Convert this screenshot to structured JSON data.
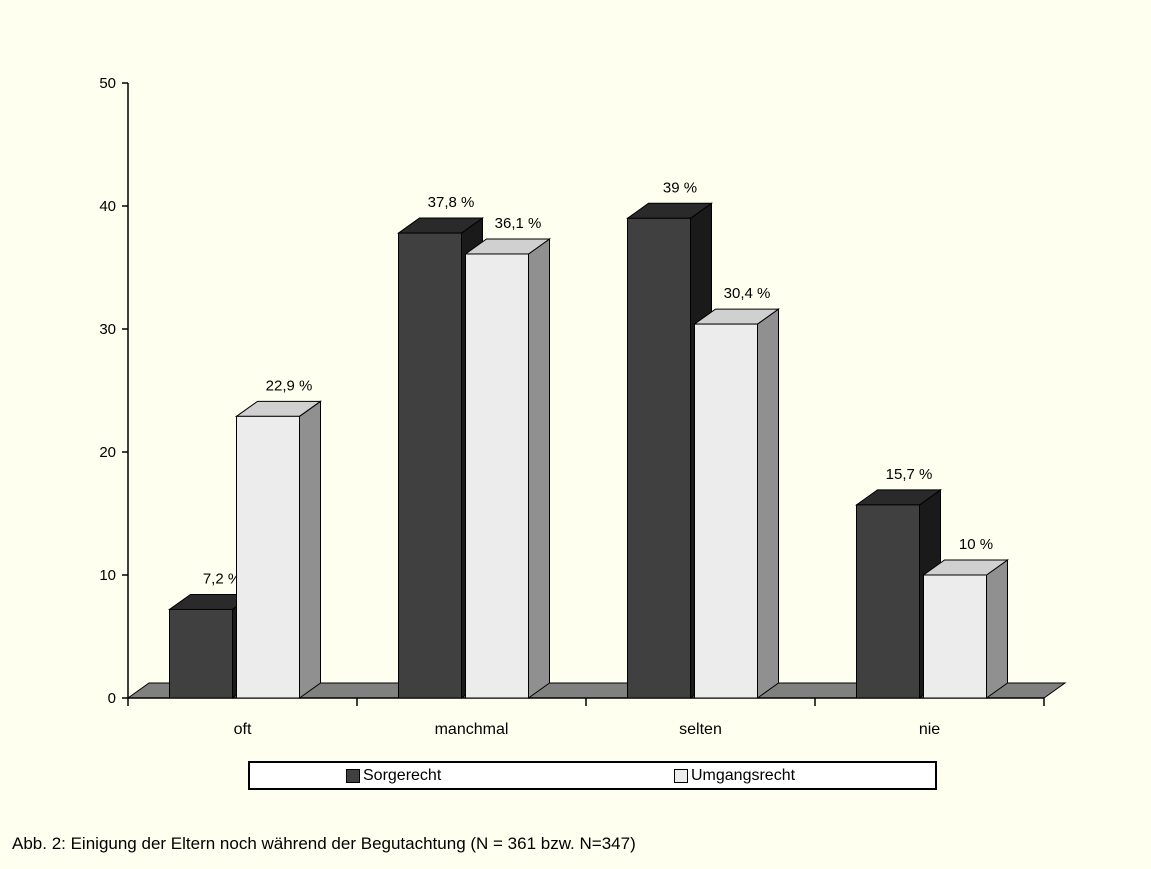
{
  "chart_data": {
    "type": "bar",
    "title": "",
    "xlabel": "",
    "ylabel": "",
    "categories": [
      "oft",
      "manchmal",
      "selten",
      "nie"
    ],
    "series": [
      {
        "name": "Sorgerecht",
        "values": [
          7.2,
          37.8,
          39,
          15.7
        ],
        "labels": [
          "7,2 %",
          "37,8 %",
          "39 %",
          "15,7 %"
        ],
        "color": "#404040"
      },
      {
        "name": "Umgangsrecht",
        "values": [
          22.9,
          36.1,
          30.4,
          10
        ],
        "labels": [
          "22,9 %",
          "36,1 %",
          "30,4 %",
          "10 %"
        ],
        "color": "#ececec"
      }
    ],
    "ylim": [
      0,
      50
    ],
    "yticks": [
      0,
      10,
      20,
      30,
      40,
      50
    ],
    "grid": false,
    "legend_position": "bottom",
    "style": "3d-clustered-column"
  },
  "caption": "Abb. 2: Einigung der Eltern noch während der Begutachtung (N = 361 bzw. N=347)"
}
